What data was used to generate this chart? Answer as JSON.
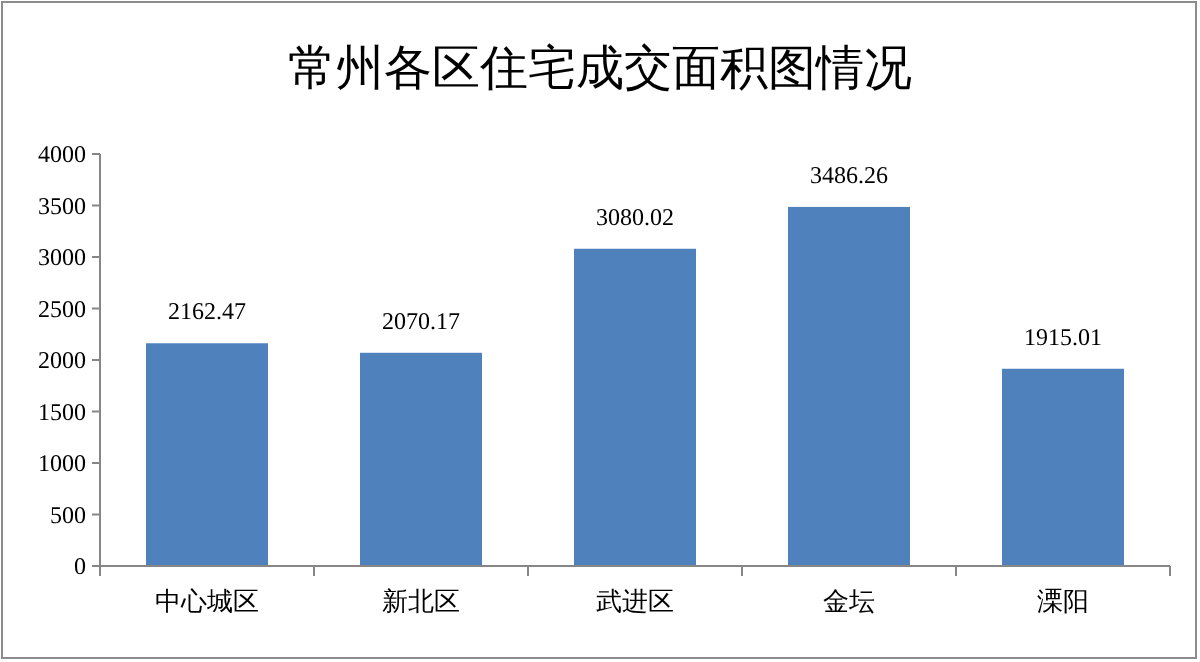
{
  "chart_data": {
    "type": "bar",
    "title": "常州各区住宅成交面积图情况",
    "categories": [
      "中心城区",
      "新北区",
      "武进区",
      "金坛",
      "溧阳"
    ],
    "values": [
      2162.47,
      2070.17,
      3080.02,
      3486.26,
      1915.01
    ],
    "color": "#4f81bd",
    "ylim": [
      0,
      4000
    ],
    "yticks": [
      0,
      500,
      1000,
      1500,
      2000,
      2500,
      3000,
      3500,
      4000
    ],
    "data_labels": true
  }
}
